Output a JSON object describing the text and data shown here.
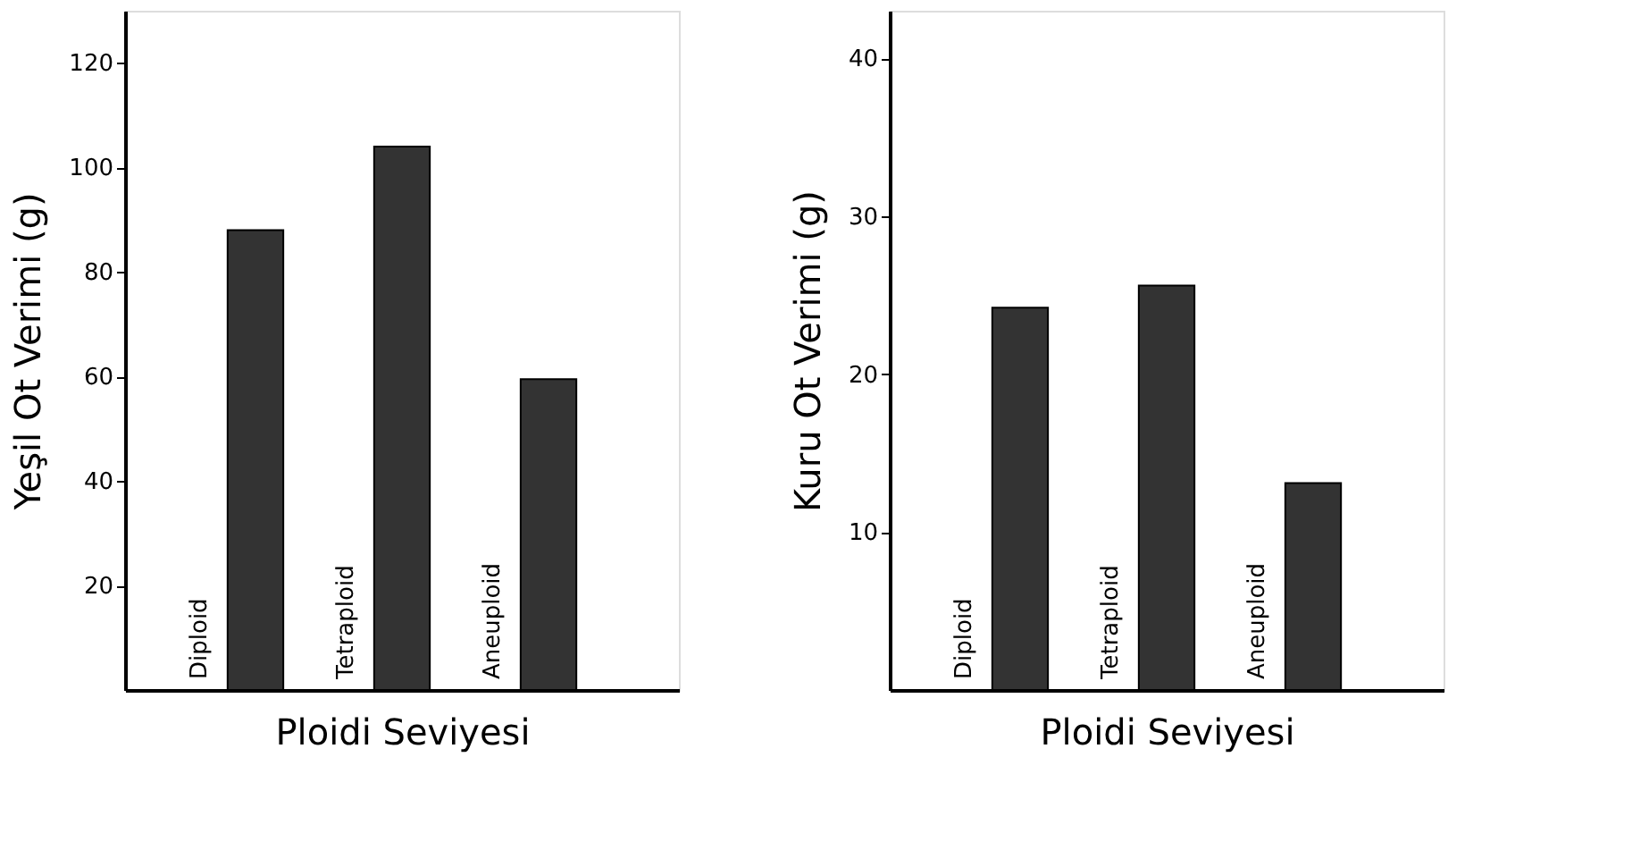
{
  "chart_data": [
    {
      "type": "bar",
      "categories": [
        "Diploid",
        "Tetraploid",
        "Aneuploid"
      ],
      "values": [
        88,
        104,
        59.5
      ],
      "color": "#333333",
      "xlabel": "Ploidi Seviyesi",
      "ylabel": "Yeşil Ot Verimi (g)",
      "ylim": [
        0,
        130
      ],
      "yticks": [
        20,
        40,
        60,
        80,
        100,
        120
      ],
      "grid": false
    },
    {
      "type": "bar",
      "categories": [
        "Diploid",
        "Tetraploid",
        "Aneuploid"
      ],
      "values": [
        24.2,
        25.6,
        13.1
      ],
      "color": "#333333",
      "xlabel": "Ploidi Seviyesi",
      "ylabel": "Kuru Ot Verimi (g)",
      "ylim": [
        0,
        43
      ],
      "yticks": [
        10,
        20,
        30,
        40
      ],
      "grid": false
    }
  ]
}
